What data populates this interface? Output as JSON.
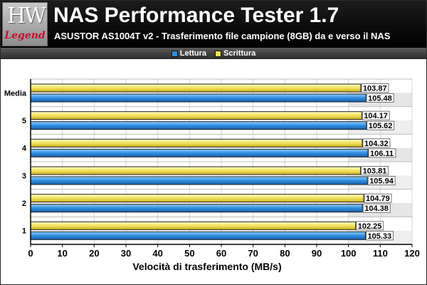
{
  "header": {
    "logo_text": "HW",
    "logo_word": "Legend",
    "title": "NAS Performance Tester 1.7",
    "subtitle": "ASUSTOR AS1004T v2 - Trasferimento file campione (8GB) da e verso il NAS"
  },
  "colors": {
    "read": "#2f8ee0",
    "write": "#f3e25a"
  },
  "chart_data": {
    "type": "bar",
    "orientation": "horizontal",
    "categories": [
      "Media",
      "5",
      "4",
      "3",
      "2",
      "1"
    ],
    "series": [
      {
        "name": "Scrittura",
        "values": [
          103.87,
          104.17,
          104.32,
          103.81,
          104.79,
          102.25
        ]
      },
      {
        "name": "Lettura",
        "values": [
          105.48,
          105.62,
          106.11,
          105.94,
          104.38,
          105.33
        ]
      }
    ],
    "legend": [
      "Lettura",
      "Scrittura"
    ],
    "legend_position": "top",
    "xlabel": "Velocità di trasferimento (MB/s)",
    "xlim": [
      0,
      120
    ],
    "xticks": [
      0,
      10,
      20,
      30,
      40,
      50,
      60,
      70,
      80,
      90,
      100,
      110,
      120
    ],
    "grid": true
  }
}
